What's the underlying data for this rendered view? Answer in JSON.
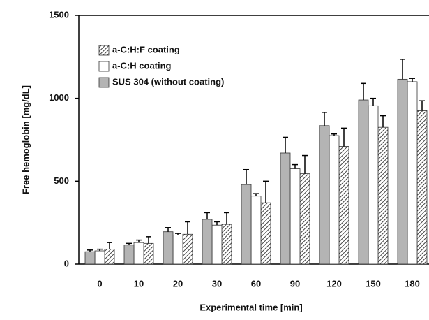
{
  "chart_data": {
    "type": "bar",
    "x_label": "Experimental time [min]",
    "y_label": "Free hemoglobin [mg/dL]",
    "categories": [
      "0",
      "10",
      "20",
      "30",
      "60",
      "90",
      "120",
      "150",
      "180"
    ],
    "series": [
      {
        "name": "a-C:H:F coating",
        "color": "#444444",
        "pattern": "hatch",
        "values": [
          90,
          125,
          180,
          240,
          370,
          545,
          710,
          825,
          925
        ],
        "errors": [
          40,
          40,
          75,
          70,
          130,
          110,
          110,
          70,
          60
        ]
      },
      {
        "name": "a-C:H coating",
        "color": "#ffffff",
        "values": [
          80,
          130,
          175,
          235,
          410,
          575,
          775,
          955,
          1100
        ],
        "errors": [
          10,
          15,
          10,
          20,
          15,
          25,
          10,
          45,
          20
        ]
      },
      {
        "name": "SUS 304 (without coating)",
        "color": "#b4b4b4",
        "values": [
          75,
          115,
          195,
          270,
          480,
          670,
          835,
          990,
          1115
        ],
        "errors": [
          10,
          10,
          25,
          40,
          90,
          95,
          80,
          100,
          120
        ]
      }
    ],
    "ylim": [
      0,
      1500
    ],
    "yticks": [
      0,
      500,
      1000,
      1500
    ]
  }
}
